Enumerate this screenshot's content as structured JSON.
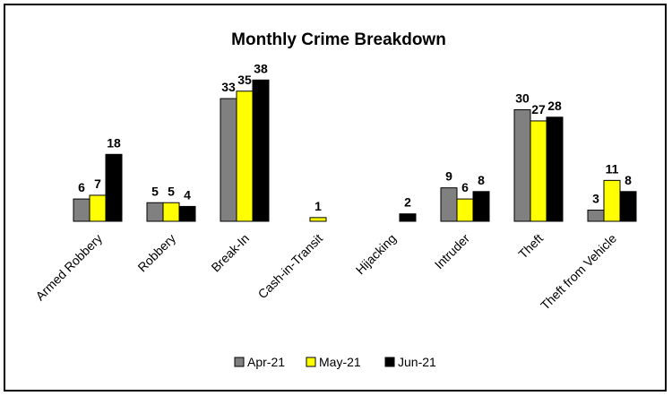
{
  "chart_data": {
    "type": "bar",
    "title": "Monthly Crime Breakdown",
    "categories": [
      "Armed Robbery",
      "Robbery",
      "Break-In",
      "Cash-in-Transit",
      "Hijacking",
      "Intruder",
      "Theft",
      "Theft from  Vehicle"
    ],
    "series": [
      {
        "name": "Apr-21",
        "color": "#808080",
        "values": [
          6,
          5,
          33,
          null,
          null,
          9,
          30,
          3
        ]
      },
      {
        "name": "May-21",
        "color": "#ffff00",
        "values": [
          7,
          5,
          35,
          1,
          null,
          6,
          27,
          11
        ]
      },
      {
        "name": "Jun-21",
        "color": "#000000",
        "values": [
          18,
          4,
          38,
          null,
          2,
          8,
          28,
          8
        ]
      }
    ],
    "ylim": [
      0,
      40
    ],
    "grid": false,
    "legend_position": "bottom",
    "xlabel": "",
    "ylabel": ""
  }
}
